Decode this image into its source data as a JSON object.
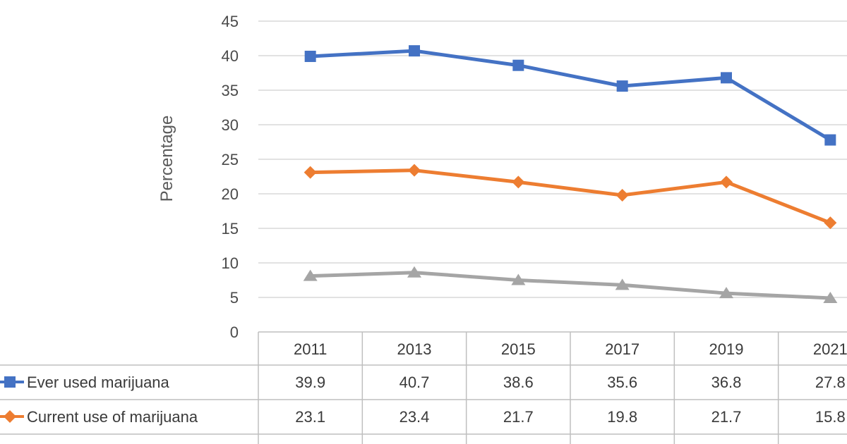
{
  "chart_data": {
    "type": "line",
    "ylabel": "Percentage",
    "ylim": [
      0,
      45
    ],
    "yticks": [
      0,
      5,
      10,
      15,
      20,
      25,
      30,
      35,
      40,
      45
    ],
    "grid": true,
    "legend": "data-table-below",
    "categories": [
      "2011",
      "2013",
      "2015",
      "2017",
      "2019",
      "2021"
    ],
    "series": [
      {
        "name": "Ever used marijuana",
        "color": "#4472c4",
        "marker": "square",
        "values": [
          39.9,
          40.7,
          38.6,
          35.6,
          36.8,
          27.8
        ]
      },
      {
        "name": "Current use of marijuana",
        "color": "#ed7d31",
        "marker": "diamond",
        "values": [
          23.1,
          23.4,
          21.7,
          19.8,
          21.7,
          15.8
        ]
      },
      {
        "name": "",
        "color": "#a5a5a5",
        "marker": "triangle",
        "values": [
          8.1,
          8.6,
          7.5,
          6.8,
          5.6,
          4.9
        ]
      }
    ]
  }
}
